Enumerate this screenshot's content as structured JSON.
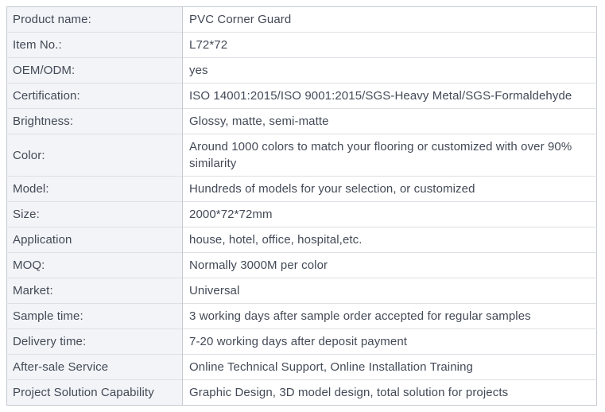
{
  "table": {
    "name": "product-specification-table",
    "columns": [
      "label",
      "value"
    ],
    "rows": [
      {
        "label": "Product name:",
        "value": "PVC Corner Guard"
      },
      {
        "label": "Item No.:",
        "value": "L72*72"
      },
      {
        "label": "OEM/ODM:",
        "value": "yes"
      },
      {
        "label": "Certification:",
        "value": "ISO 14001:2015/ISO 9001:2015/SGS-Heavy Metal/SGS-Formaldehyde"
      },
      {
        "label": "Brightness:",
        "value": "Glossy, matte, semi-matte"
      },
      {
        "label": "Color:",
        "value": "Around 1000 colors to match your flooring or customized with over 90% similarity"
      },
      {
        "label": "Model:",
        "value": "Hundreds of models for your selection, or customized"
      },
      {
        "label": "Size:",
        "value": "2000*72*72mm"
      },
      {
        "label": "Application",
        "value": "house, hotel, office, hospital,etc."
      },
      {
        "label": "MOQ:",
        "value": "Normally 3000M per color"
      },
      {
        "label": "Market:",
        "value": "Universal"
      },
      {
        "label": "Sample time:",
        "value": "3 working days after sample order accepted for regular samples"
      },
      {
        "label": "Delivery time:",
        "value": "7-20 working days after deposit payment"
      },
      {
        "label": "After-sale Service",
        "value": "Online Technical Support, Online Installation Training"
      },
      {
        "label": "Project Solution Capability",
        "value": "Graphic Design, 3D model design, total solution for projects"
      }
    ]
  },
  "colors": {
    "label_cell_background": "#f2f4f7",
    "value_cell_background": "#ffffff",
    "text": "#434a57",
    "border_outer_and_divider": "#c6cad0",
    "border_row_separator": "#dde0e4"
  }
}
